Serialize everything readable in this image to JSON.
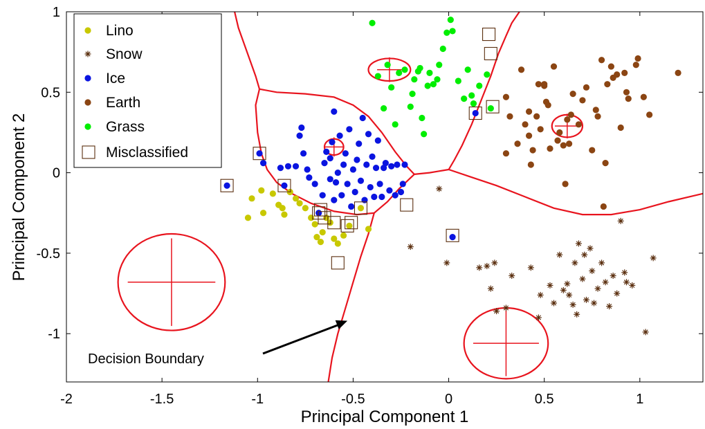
{
  "chart_data": {
    "type": "scatter",
    "xlabel": "Principal Component 1",
    "ylabel": "Principal Component 2",
    "xlim": [
      -2,
      1.33
    ],
    "ylim": [
      -1.3,
      1
    ],
    "xticks": [
      -2,
      -1.5,
      -1,
      -0.5,
      0,
      0.5,
      1
    ],
    "xtick_labels": [
      "-2",
      "-1.5",
      "-1",
      "-0.5",
      "0",
      "0.5",
      "1"
    ],
    "yticks": [
      -1,
      -0.5,
      0,
      0.5,
      1
    ],
    "ytick_labels": [
      "-1",
      "-0.5",
      "0",
      "0.5",
      "1"
    ],
    "grid": false,
    "legend_position": "top-left",
    "series": [
      {
        "name": "Lino",
        "marker": "dot",
        "color": "#c8c800",
        "points": [
          [
            -1.05,
            -0.28
          ],
          [
            -1.03,
            -0.16
          ],
          [
            -0.98,
            -0.11
          ],
          [
            -0.97,
            -0.25
          ],
          [
            -0.92,
            -0.13
          ],
          [
            -0.89,
            -0.2
          ],
          [
            -0.87,
            -0.22
          ],
          [
            -0.86,
            -0.26
          ],
          [
            -0.83,
            -0.12
          ],
          [
            -0.8,
            -0.16
          ],
          [
            -0.78,
            -0.19
          ],
          [
            -0.75,
            -0.22
          ],
          [
            -0.72,
            -0.28
          ],
          [
            -0.7,
            -0.32
          ],
          [
            -0.69,
            -0.4
          ],
          [
            -0.67,
            -0.43
          ],
          [
            -0.66,
            -0.37
          ],
          [
            -0.64,
            -0.28
          ],
          [
            -0.62,
            -0.31
          ],
          [
            -0.6,
            -0.41
          ],
          [
            -0.58,
            -0.44
          ],
          [
            -0.55,
            -0.39
          ],
          [
            -0.52,
            -0.33
          ],
          [
            -0.46,
            -0.22
          ],
          [
            -0.42,
            -0.35
          ]
        ]
      },
      {
        "name": "Snow",
        "marker": "star",
        "color": "#5a2e0e",
        "points": [
          [
            -0.2,
            -0.46
          ],
          [
            -0.05,
            -0.1
          ],
          [
            -0.01,
            -0.56
          ],
          [
            0.16,
            -0.59
          ],
          [
            0.2,
            -0.58
          ],
          [
            0.24,
            -0.56
          ],
          [
            0.22,
            -0.72
          ],
          [
            0.25,
            -0.86
          ],
          [
            0.3,
            -0.84
          ],
          [
            0.33,
            -0.64
          ],
          [
            0.43,
            -0.59
          ],
          [
            0.47,
            -0.9
          ],
          [
            0.48,
            -0.76
          ],
          [
            0.53,
            -0.7
          ],
          [
            0.55,
            -0.81
          ],
          [
            0.58,
            -0.51
          ],
          [
            0.6,
            -0.73
          ],
          [
            0.62,
            -0.69
          ],
          [
            0.63,
            -0.76
          ],
          [
            0.65,
            -0.82
          ],
          [
            0.66,
            -0.56
          ],
          [
            0.67,
            -0.88
          ],
          [
            0.68,
            -0.44
          ],
          [
            0.7,
            -0.66
          ],
          [
            0.71,
            -0.51
          ],
          [
            0.72,
            -0.79
          ],
          [
            0.74,
            -0.47
          ],
          [
            0.75,
            -0.61
          ],
          [
            0.76,
            -0.81
          ],
          [
            0.78,
            -0.72
          ],
          [
            0.8,
            -0.56
          ],
          [
            0.82,
            -0.68
          ],
          [
            0.84,
            -0.83
          ],
          [
            0.86,
            -0.64
          ],
          [
            0.88,
            -0.75
          ],
          [
            0.9,
            -0.3
          ],
          [
            0.92,
            -0.62
          ],
          [
            0.93,
            -0.68
          ],
          [
            0.96,
            -0.7
          ],
          [
            1.03,
            -0.99
          ],
          [
            1.07,
            -0.53
          ]
        ]
      },
      {
        "name": "Ice",
        "marker": "dot",
        "color": "#0a14e0",
        "points": [
          [
            -1.16,
            -0.08
          ],
          [
            -0.99,
            0.12
          ],
          [
            -0.97,
            0.06
          ],
          [
            -0.88,
            0.03
          ],
          [
            -0.86,
            -0.08
          ],
          [
            -0.84,
            0.04
          ],
          [
            -0.8,
            0.04
          ],
          [
            -0.78,
            0.23
          ],
          [
            -0.77,
            0.28
          ],
          [
            -0.76,
            0.12
          ],
          [
            -0.74,
            0.02
          ],
          [
            -0.73,
            -0.03
          ],
          [
            -0.7,
            -0.07
          ],
          [
            -0.68,
            -0.25
          ],
          [
            -0.66,
            -0.14
          ],
          [
            -0.65,
            0.06
          ],
          [
            -0.64,
            0.13
          ],
          [
            -0.62,
            -0.04
          ],
          [
            -0.62,
            0.09
          ],
          [
            -0.61,
            0.19
          ],
          [
            -0.6,
            -0.17
          ],
          [
            -0.6,
            0.38
          ],
          [
            -0.59,
            -0.06
          ],
          [
            -0.58,
            0.0
          ],
          [
            -0.57,
            0.23
          ],
          [
            -0.56,
            -0.14
          ],
          [
            -0.55,
            0.05
          ],
          [
            -0.54,
            0.12
          ],
          [
            -0.53,
            -0.07
          ],
          [
            -0.52,
            0.27
          ],
          [
            -0.51,
            -0.21
          ],
          [
            -0.5,
            0.02
          ],
          [
            -0.49,
            -0.12
          ],
          [
            -0.48,
            0.08
          ],
          [
            -0.47,
            0.18
          ],
          [
            -0.46,
            -0.05
          ],
          [
            -0.45,
            0.34
          ],
          [
            -0.44,
            -0.17
          ],
          [
            -0.43,
            0.05
          ],
          [
            -0.42,
            0.24
          ],
          [
            -0.41,
            -0.09
          ],
          [
            -0.4,
            0.1
          ],
          [
            -0.39,
            -0.15
          ],
          [
            -0.38,
            0.03
          ],
          [
            -0.37,
            0.2
          ],
          [
            -0.36,
            -0.07
          ],
          [
            -0.35,
            -0.15
          ],
          [
            -0.34,
            0.03
          ],
          [
            -0.33,
            0.06
          ],
          [
            -0.31,
            -0.11
          ],
          [
            -0.3,
            0.04
          ],
          [
            -0.28,
            -0.14
          ],
          [
            -0.27,
            0.05
          ],
          [
            -0.25,
            -0.12
          ],
          [
            -0.24,
            -0.07
          ],
          [
            -0.23,
            0.05
          ],
          [
            0.02,
            -0.4
          ],
          [
            0.14,
            0.37
          ]
        ]
      },
      {
        "name": "Earth",
        "marker": "dot",
        "color": "#8b4513",
        "points": [
          [
            0.3,
            0.47
          ],
          [
            0.3,
            0.12
          ],
          [
            0.32,
            0.35
          ],
          [
            0.36,
            0.18
          ],
          [
            0.38,
            0.64
          ],
          [
            0.4,
            0.3
          ],
          [
            0.42,
            0.38
          ],
          [
            0.42,
            0.23
          ],
          [
            0.43,
            0.05
          ],
          [
            0.44,
            0.14
          ],
          [
            0.46,
            0.35
          ],
          [
            0.47,
            0.55
          ],
          [
            0.48,
            0.27
          ],
          [
            0.5,
            0.54
          ],
          [
            0.5,
            0.55
          ],
          [
            0.51,
            0.44
          ],
          [
            0.52,
            0.42
          ],
          [
            0.53,
            0.15
          ],
          [
            0.55,
            0.66
          ],
          [
            0.57,
            0.2
          ],
          [
            0.58,
            0.25
          ],
          [
            0.6,
            0.17
          ],
          [
            0.61,
            -0.07
          ],
          [
            0.62,
            0.33
          ],
          [
            0.63,
            0.18
          ],
          [
            0.64,
            0.36
          ],
          [
            0.65,
            0.49
          ],
          [
            0.68,
            0.3
          ],
          [
            0.7,
            0.45
          ],
          [
            0.72,
            0.53
          ],
          [
            0.75,
            0.14
          ],
          [
            0.77,
            0.39
          ],
          [
            0.78,
            0.35
          ],
          [
            0.8,
            0.7
          ],
          [
            0.82,
            0.06
          ],
          [
            0.83,
            0.55
          ],
          [
            0.85,
            0.66
          ],
          [
            0.86,
            0.59
          ],
          [
            0.88,
            0.61
          ],
          [
            0.9,
            0.28
          ],
          [
            0.92,
            0.62
          ],
          [
            0.93,
            0.5
          ],
          [
            0.94,
            0.46
          ],
          [
            0.98,
            0.67
          ],
          [
            0.99,
            0.71
          ],
          [
            1.02,
            0.47
          ],
          [
            1.05,
            0.36
          ],
          [
            1.2,
            0.62
          ],
          [
            0.81,
            -0.21
          ]
        ]
      },
      {
        "name": "Grass",
        "marker": "dot",
        "color": "#00ee00",
        "points": [
          [
            -0.4,
            0.93
          ],
          [
            -0.37,
            0.6
          ],
          [
            -0.34,
            0.4
          ],
          [
            -0.32,
            0.67
          ],
          [
            -0.3,
            0.53
          ],
          [
            -0.28,
            0.3
          ],
          [
            -0.26,
            0.62
          ],
          [
            -0.23,
            0.64
          ],
          [
            -0.2,
            0.41
          ],
          [
            -0.19,
            0.49
          ],
          [
            -0.18,
            0.58
          ],
          [
            -0.16,
            0.63
          ],
          [
            -0.15,
            0.65
          ],
          [
            -0.14,
            0.34
          ],
          [
            -0.13,
            0.24
          ],
          [
            -0.11,
            0.54
          ],
          [
            -0.1,
            0.62
          ],
          [
            -0.08,
            0.55
          ],
          [
            -0.06,
            0.58
          ],
          [
            -0.05,
            0.67
          ],
          [
            -0.03,
            0.77
          ],
          [
            -0.01,
            0.87
          ],
          [
            0.01,
            0.95
          ],
          [
            0.02,
            0.88
          ],
          [
            0.05,
            0.57
          ],
          [
            0.08,
            0.46
          ],
          [
            0.1,
            0.64
          ],
          [
            0.12,
            0.48
          ],
          [
            0.13,
            0.43
          ],
          [
            0.16,
            0.54
          ],
          [
            0.2,
            0.61
          ],
          [
            0.22,
            0.4
          ]
        ]
      }
    ],
    "misclassified": [
      [
        -1.16,
        -0.08
      ],
      [
        -0.99,
        0.12
      ],
      [
        -0.86,
        -0.08
      ],
      [
        -0.68,
        -0.25
      ],
      [
        -0.67,
        -0.23
      ],
      [
        -0.65,
        -0.28
      ],
      [
        -0.6,
        -0.31
      ],
      [
        -0.58,
        -0.56
      ],
      [
        -0.53,
        -0.33
      ],
      [
        -0.51,
        -0.31
      ],
      [
        -0.46,
        -0.22
      ],
      [
        -0.22,
        -0.2
      ],
      [
        0.02,
        -0.39
      ],
      [
        0.14,
        0.37
      ],
      [
        0.21,
        0.86
      ],
      [
        0.22,
        0.74
      ],
      [
        0.23,
        0.41
      ]
    ],
    "class_centers": [
      {
        "center": [
          -0.31,
          0.64
        ],
        "radius": [
          0.11,
          0.07
        ]
      },
      {
        "center": [
          -0.6,
          0.16
        ],
        "radius": [
          0.05,
          0.05
        ]
      },
      {
        "center": [
          0.62,
          0.29
        ],
        "radius": [
          0.08,
          0.07
        ]
      },
      {
        "center": [
          -1.45,
          -0.68
        ],
        "radius": [
          0.28,
          0.3
        ]
      },
      {
        "center": [
          0.3,
          -1.06
        ],
        "radius": [
          0.22,
          0.22
        ]
      }
    ],
    "decision_boundaries": [
      [
        [
          -1.12,
          1.0
        ],
        [
          -1.1,
          0.9
        ],
        [
          -1.07,
          0.8
        ],
        [
          -1.04,
          0.7
        ],
        [
          -1.01,
          0.6
        ],
        [
          -0.99,
          0.52
        ]
      ],
      [
        [
          -0.99,
          0.52
        ],
        [
          -0.9,
          0.5
        ],
        [
          -0.75,
          0.49
        ],
        [
          -0.6,
          0.47
        ],
        [
          -0.5,
          0.42
        ],
        [
          -0.42,
          0.35
        ],
        [
          -0.35,
          0.25
        ],
        [
          -0.28,
          0.13
        ],
        [
          -0.22,
          0.04
        ],
        [
          -0.18,
          -0.01
        ]
      ],
      [
        [
          -0.99,
          0.52
        ],
        [
          -1.01,
          0.42
        ],
        [
          -1.0,
          0.25
        ],
        [
          -0.98,
          0.12
        ],
        [
          -0.95,
          0.02
        ],
        [
          -0.9,
          -0.06
        ],
        [
          -0.82,
          -0.13
        ],
        [
          -0.72,
          -0.19
        ],
        [
          -0.6,
          -0.24
        ],
        [
          -0.48,
          -0.26
        ],
        [
          -0.39,
          -0.25
        ],
        [
          -0.32,
          -0.18
        ],
        [
          -0.26,
          -0.1
        ],
        [
          -0.18,
          -0.01
        ]
      ],
      [
        [
          -0.39,
          -0.25
        ],
        [
          -0.42,
          -0.38
        ],
        [
          -0.46,
          -0.52
        ],
        [
          -0.5,
          -0.68
        ],
        [
          -0.54,
          -0.84
        ],
        [
          -0.58,
          -1.0
        ],
        [
          -0.61,
          -1.15
        ],
        [
          -0.63,
          -1.3
        ]
      ],
      [
        [
          -0.18,
          -0.01
        ],
        [
          -0.1,
          0.0
        ],
        [
          -0.05,
          0.01
        ],
        [
          0.0,
          0.02
        ]
      ],
      [
        [
          0.0,
          0.02
        ],
        [
          0.03,
          0.08
        ],
        [
          0.07,
          0.17
        ],
        [
          0.12,
          0.3
        ],
        [
          0.17,
          0.45
        ],
        [
          0.22,
          0.6
        ],
        [
          0.26,
          0.74
        ],
        [
          0.3,
          0.85
        ],
        [
          0.33,
          0.93
        ],
        [
          0.37,
          1.0
        ]
      ],
      [
        [
          0.0,
          0.02
        ],
        [
          0.1,
          -0.02
        ],
        [
          0.25,
          -0.08
        ],
        [
          0.4,
          -0.15
        ],
        [
          0.55,
          -0.22
        ],
        [
          0.7,
          -0.26
        ],
        [
          0.85,
          -0.26
        ],
        [
          1.0,
          -0.23
        ],
        [
          1.15,
          -0.18
        ],
        [
          1.33,
          -0.13
        ]
      ]
    ],
    "annotation": {
      "text": "Decision Boundary",
      "from": [
        -1.0,
        -1.12
      ],
      "to": [
        -0.53,
        -0.92
      ]
    }
  },
  "colors": {
    "boundary": "#e8141e",
    "misclassified_box": "#5a2e0e",
    "center_marker": "#e8141e"
  }
}
